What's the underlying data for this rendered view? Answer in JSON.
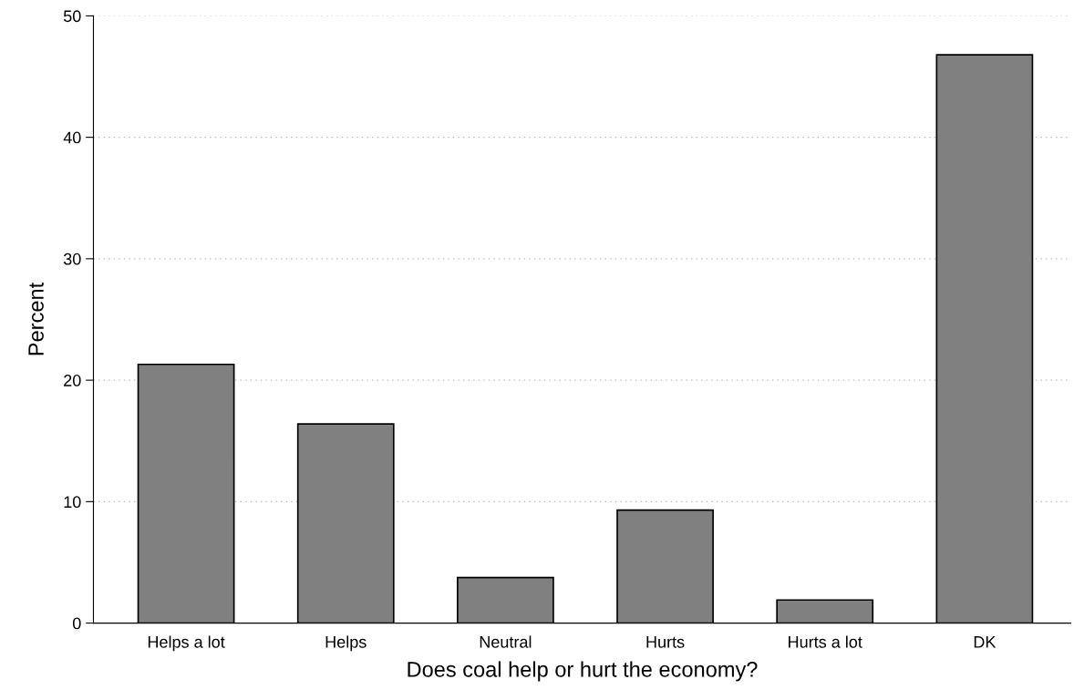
{
  "chart_data": {
    "type": "bar",
    "xlabel": "Does coal help or hurt the economy?",
    "ylabel": "Percent",
    "categories": [
      "Helps a lot",
      "Helps",
      "Neutral",
      "Hurts",
      "Hurts a lot",
      "DK"
    ],
    "values": [
      21.3,
      16.4,
      3.75,
      9.3,
      1.9,
      46.8
    ],
    "color": "#808080",
    "ylim": [
      0,
      50
    ],
    "yticks": [
      0,
      10,
      20,
      30,
      40,
      50
    ],
    "grid": "y"
  }
}
